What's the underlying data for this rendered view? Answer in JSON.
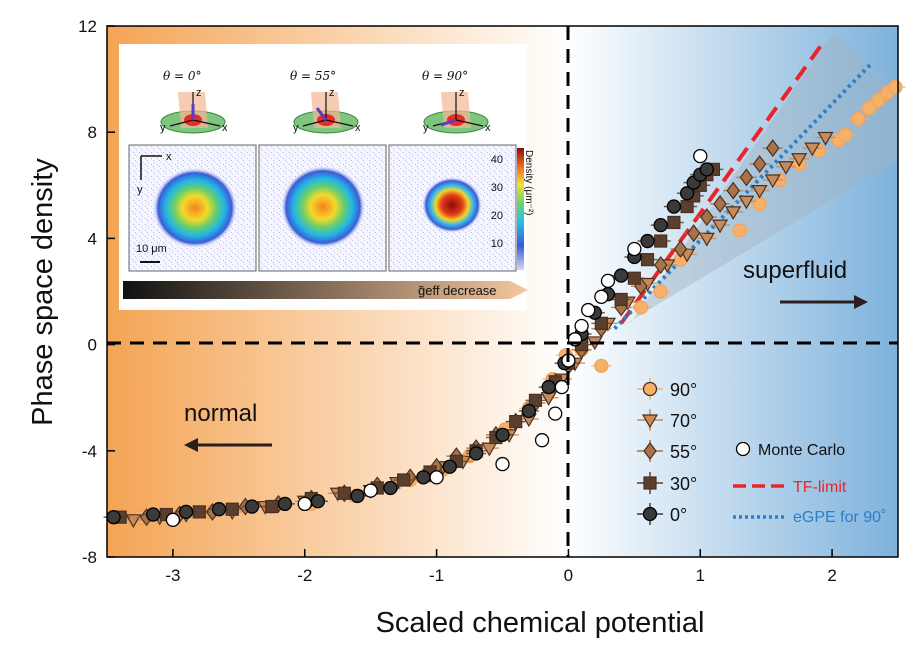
{
  "chart_data": {
    "type": "scatter",
    "xlabel": "Scaled chemical potential",
    "ylabel": "Phase space density",
    "xlim": [
      -3.5,
      2.5
    ],
    "ylim": [
      -8,
      12
    ],
    "xticks": [
      "-3",
      "-2",
      "-1",
      "0",
      "1",
      "2"
    ],
    "yticks": [
      "-8",
      "-4",
      "0",
      "4",
      "8",
      "12"
    ],
    "region_labels": {
      "normal": "normal",
      "superfluid": "superfluid"
    },
    "colors": {
      "90": "#f5b06a",
      "70": "#c98a5a",
      "55": "#a8724a",
      "30": "#5a3f2e",
      "0": "#3a3a3a",
      "tf": "#e8262a",
      "egpe": "#2a7fc8",
      "normal_bg": "#f4a454",
      "superfluid_bg": "#7eb2dc"
    },
    "series": [
      {
        "name": "90°",
        "marker": "circle",
        "x": [
          -3.25,
          -2.72,
          -2.25,
          -1.95,
          -1.62,
          -1.2,
          -0.95,
          -0.75,
          -0.48,
          -0.3,
          -0.12,
          -0.02,
          0.1,
          0.25,
          0.55,
          0.7,
          0.85,
          1.3,
          1.45,
          1.6,
          1.75,
          1.9,
          2.05,
          2.1,
          2.2,
          2.28,
          2.35,
          2.42,
          2.48
        ],
        "y": [
          -6.5,
          -6.3,
          -6.1,
          -6.0,
          -5.7,
          -5.1,
          -4.7,
          -4.2,
          -3.2,
          -2.4,
          -1.3,
          -0.4,
          -0.2,
          -0.8,
          1.4,
          2.0,
          3.2,
          4.3,
          5.3,
          6.2,
          6.8,
          7.3,
          7.7,
          7.9,
          8.5,
          8.9,
          9.2,
          9.5,
          9.7
        ]
      },
      {
        "name": "70°",
        "marker": "triangle-down",
        "x": [
          -3.3,
          -3.1,
          -2.9,
          -2.55,
          -2.3,
          -2.0,
          -1.75,
          -1.5,
          -1.3,
          -1.05,
          -0.95,
          -0.8,
          -0.6,
          -0.45,
          -0.3,
          -0.15,
          -0.05,
          0.05,
          0.2,
          0.3,
          0.45,
          0.6,
          0.75,
          0.9,
          1.05,
          1.15,
          1.25,
          1.35,
          1.45,
          1.55,
          1.65,
          1.75,
          1.85,
          1.95
        ],
        "y": [
          -6.6,
          -6.5,
          -6.4,
          -6.3,
          -6.1,
          -5.9,
          -5.6,
          -5.5,
          -5.2,
          -4.9,
          -4.6,
          -4.4,
          -3.9,
          -3.4,
          -2.8,
          -2.0,
          -1.3,
          -0.7,
          0.1,
          0.8,
          1.6,
          2.3,
          3.0,
          3.4,
          4.0,
          4.5,
          5.0,
          5.4,
          5.8,
          6.2,
          6.7,
          7.0,
          7.4,
          7.8
        ]
      },
      {
        "name": "55°",
        "marker": "diamond",
        "x": [
          -3.2,
          -2.95,
          -2.7,
          -2.45,
          -2.2,
          -1.95,
          -1.7,
          -1.45,
          -1.2,
          -1.0,
          -0.85,
          -0.7,
          -0.55,
          -0.4,
          -0.25,
          -0.1,
          0.0,
          0.1,
          0.25,
          0.4,
          0.55,
          0.7,
          0.85,
          0.95,
          1.05,
          1.15,
          1.25,
          1.35,
          1.45,
          1.55
        ],
        "y": [
          -6.5,
          -6.4,
          -6.3,
          -6.1,
          -6.0,
          -5.8,
          -5.6,
          -5.3,
          -5.0,
          -4.6,
          -4.2,
          -3.9,
          -3.4,
          -2.9,
          -2.2,
          -1.5,
          -0.8,
          -0.2,
          0.6,
          1.4,
          2.2,
          3.0,
          3.6,
          4.2,
          4.8,
          5.3,
          5.8,
          6.3,
          6.8,
          7.4
        ]
      },
      {
        "name": "30°",
        "marker": "square",
        "x": [
          -3.4,
          -3.05,
          -2.8,
          -2.55,
          -2.25,
          -1.95,
          -1.7,
          -1.45,
          -1.25,
          -1.05,
          -0.85,
          -0.7,
          -0.55,
          -0.4,
          -0.25,
          -0.1,
          0.0,
          0.1,
          0.25,
          0.4,
          0.5,
          0.6,
          0.7,
          0.8,
          0.9,
          0.95,
          1.0,
          1.05,
          1.1
        ],
        "y": [
          -6.5,
          -6.4,
          -6.3,
          -6.2,
          -6.1,
          -5.8,
          -5.6,
          -5.4,
          -5.1,
          -4.8,
          -4.4,
          -4.0,
          -3.5,
          -2.9,
          -2.1,
          -1.4,
          -0.7,
          0.0,
          0.8,
          1.7,
          2.5,
          3.2,
          3.9,
          4.6,
          5.2,
          5.6,
          6.0,
          6.4,
          6.6
        ]
      },
      {
        "name": "0°",
        "marker": "circle-filled",
        "x": [
          -3.45,
          -3.15,
          -2.9,
          -2.65,
          -2.4,
          -2.15,
          -1.9,
          -1.6,
          -1.35,
          -1.1,
          -0.9,
          -0.7,
          -0.5,
          -0.3,
          -0.15,
          -0.03,
          0.1,
          0.2,
          0.3,
          0.4,
          0.5,
          0.6,
          0.7,
          0.8,
          0.9,
          0.95,
          1.0,
          1.05
        ],
        "y": [
          -6.5,
          -6.4,
          -6.3,
          -6.2,
          -6.1,
          -6.0,
          -5.9,
          -5.7,
          -5.4,
          -5.0,
          -4.6,
          -4.1,
          -3.4,
          -2.5,
          -1.6,
          -0.7,
          0.4,
          1.2,
          1.9,
          2.6,
          3.3,
          3.9,
          4.5,
          5.2,
          5.7,
          6.1,
          6.4,
          6.6
        ]
      },
      {
        "name": "Monte Carlo",
        "marker": "circle-open",
        "x": [
          -3.0,
          -2.0,
          -1.5,
          -1.0,
          -0.5,
          -0.2,
          -0.1,
          -0.05,
          0.0,
          0.05,
          0.1,
          0.15,
          0.25,
          0.3,
          0.5,
          1.0
        ],
        "y": [
          -6.6,
          -6.0,
          -5.5,
          -5.0,
          -4.5,
          -3.6,
          -2.6,
          -1.6,
          -0.6,
          0.2,
          0.7,
          1.3,
          1.8,
          2.4,
          3.6,
          7.1
        ]
      }
    ],
    "lines": [
      {
        "name": "TF-limit",
        "style": "dashed",
        "x": [
          0.4,
          1.95
        ],
        "y": [
          0.8,
          11.5
        ]
      },
      {
        "name": "eGPE for 90˚",
        "style": "dotted",
        "x": [
          0.35,
          2.3
        ],
        "y": [
          0.6,
          10.6
        ]
      }
    ],
    "inset": {
      "angles": [
        "θ = 0°",
        "θ = 55°",
        "θ = 90°"
      ],
      "axis_x": "x",
      "axis_y": "y",
      "axis_z": "z",
      "scale_bar": "10 μm",
      "colorbar_label": "Density (μm⁻²)",
      "colorbar_ticks": [
        "40",
        "30",
        "20",
        "10"
      ],
      "arrow_label": "g̃eff decrease"
    }
  }
}
